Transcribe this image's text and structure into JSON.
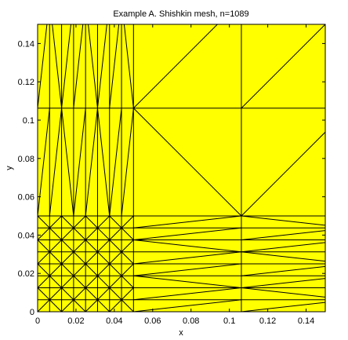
{
  "chart_data": {
    "type": "mesh",
    "title": "Example A. Shishkin mesh, n=1089",
    "xlabel": "x",
    "ylabel": "y",
    "xlim": [
      0,
      0.15
    ],
    "ylim": [
      0,
      0.15
    ],
    "xticks": [
      0,
      0.02,
      0.04,
      0.06,
      0.08,
      0.1,
      0.12,
      0.14
    ],
    "yticks": [
      0,
      0.02,
      0.04,
      0.06,
      0.08,
      0.1,
      0.12,
      0.14
    ],
    "xtick_labels": [
      "0",
      "0.02",
      "0.04",
      "0.06",
      "0.08",
      "0.1",
      "0.12",
      "0.14"
    ],
    "ytick_labels": [
      "0",
      "0.02",
      "0.04",
      "0.06",
      "0.08",
      "0.1",
      "0.12",
      "0.14"
    ],
    "fill_color": "#ffff00",
    "edge_color": "#000000",
    "mesh": {
      "x_nodes": [
        0,
        0.00625,
        0.0125,
        0.01875,
        0.025,
        0.03125,
        0.0375,
        0.04375,
        0.05,
        0.10625,
        0.1625
      ],
      "y_nodes": [
        0,
        0.00625,
        0.0125,
        0.01875,
        0.025,
        0.03125,
        0.0375,
        0.04375,
        0.05,
        0.10625,
        0.1625
      ]
    }
  }
}
